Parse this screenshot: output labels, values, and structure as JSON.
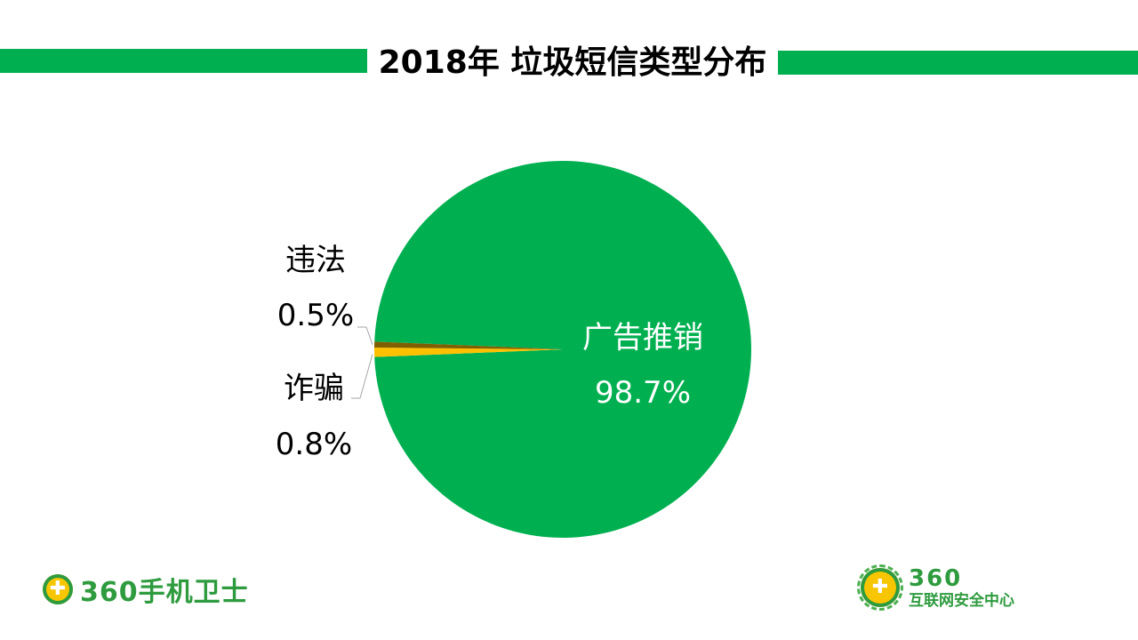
{
  "header": {
    "title": "2018年 垃圾短信类型分布"
  },
  "colors": {
    "accent_green": "#00b050",
    "slice_ad": "#00b050",
    "slice_illegal": "#7f5f00",
    "slice_fraud": "#ffc000",
    "logo_green": "#2e9b3e",
    "logo_yellow": "#f7c600"
  },
  "chart_data": {
    "type": "pie",
    "title": "2018年 垃圾短信类型分布",
    "slices": [
      {
        "label": "广告推销",
        "value": 98.7,
        "value_label": "98.7%",
        "color": "#00b050"
      },
      {
        "label": "诈骗",
        "value": 0.8,
        "value_label": "0.8%",
        "color": "#ffc000"
      },
      {
        "label": "违法",
        "value": 0.5,
        "value_label": "0.5%",
        "color": "#7f5f00"
      }
    ]
  },
  "footer": {
    "left_brand": "360手机卫士",
    "left_icon": "plus-shield-icon",
    "right_brand_number": "360",
    "right_brand_name": "互联网安全中心",
    "right_icon": "plus-wreath-icon"
  }
}
